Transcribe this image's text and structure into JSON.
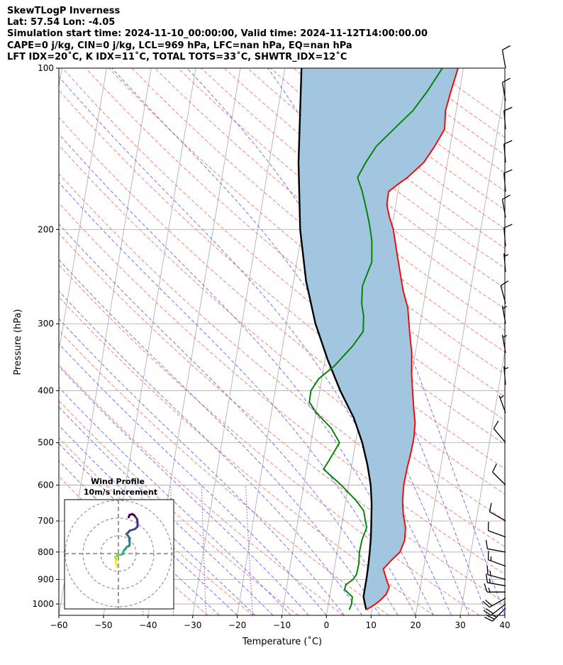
{
  "header": {
    "line1": "SkewTLogP Inverness",
    "line2": "Lat: 57.54   Lon: -4.05",
    "line3": "Simulation start time: 2024-11-10_00:00:00, Valid time: 2024-11-12T14:00:00.00",
    "line4": "CAPE=0 j/kg, CIN=0 j/kg, LCL=969 hPa, LFC=nan hPa, EQ=nan hPa",
    "line5": "LFT IDX=20$^\\circ$C, K IDX=11$^\\circ$C, TOTAL TOTS=33$^\\circ$C, SHWTR_IDX=12$^\\circ$C"
  },
  "header_display": {
    "line5": "LFT IDX=20˚C, K IDX=11˚C, TOTAL TOTS=33˚C, SHWTR_IDX=12˚C"
  },
  "colors": {
    "temperature": "#ff0000",
    "dewpoint": "#008000",
    "parcel": "#000000",
    "cape_fill": "#a2c5e0",
    "dry_adiabat": "#ff6666",
    "moist_adiabat": "#5a5aff",
    "mixing_ratio": "#9a40c0",
    "isotherm": "#b0b0b0",
    "grid": "#b0b0b0"
  },
  "chart_data": [
    {
      "type": "line",
      "title": "",
      "xlabel": "Temperature ($^\\circ$C)",
      "xlabel_display": "Temperature (˚C)",
      "ylabel": "Pressure (hPa)",
      "xlim": [
        -60,
        40
      ],
      "ylim": [
        1050,
        100
      ],
      "yscale": "log",
      "x_ticks": [
        -60,
        -50,
        -40,
        -30,
        -20,
        -10,
        0,
        10,
        20,
        30,
        40
      ],
      "x_tick_labels": [
        "−60",
        "−50",
        "−40",
        "−30",
        "−20",
        "−10",
        "0",
        "10",
        "20",
        "30",
        "40"
      ],
      "y_ticks": [
        100,
        200,
        300,
        400,
        500,
        600,
        700,
        800,
        900,
        1000
      ],
      "y_tick_labels": [
        "100",
        "200",
        "300",
        "400",
        "500",
        "600",
        "700",
        "800",
        "900",
        "1000"
      ],
      "grid": true,
      "skew": true,
      "series": [
        {
          "kind": "temperature",
          "points": [
            [
              1025,
              8.7
            ],
            [
              1010,
              9.9
            ],
            [
              990,
              11.2
            ],
            [
              960,
              12.6
            ],
            [
              930,
              13.0
            ],
            [
              900,
              12.1
            ],
            [
              860,
              11.0
            ],
            [
              830,
              12.4
            ],
            [
              800,
              14.1
            ],
            [
              760,
              14.7
            ],
            [
              720,
              14.4
            ],
            [
              680,
              13.4
            ],
            [
              640,
              12.7
            ],
            [
              600,
              12.4
            ],
            [
              560,
              12.5
            ],
            [
              520,
              12.8
            ],
            [
              490,
              12.9
            ],
            [
              460,
              12.6
            ],
            [
              430,
              11.7
            ],
            [
              400,
              10.8
            ],
            [
              370,
              9.9
            ],
            [
              340,
              9.2
            ],
            [
              310,
              7.9
            ],
            [
              280,
              6.6
            ],
            [
              260,
              4.9
            ],
            [
              240,
              3.5
            ],
            [
              220,
              2.0
            ],
            [
              200,
              0.4
            ],
            [
              190,
              -0.9
            ],
            [
              180,
              -2.0
            ],
            [
              170,
              -2.1
            ],
            [
              165,
              -0.4
            ],
            [
              160,
              1.6
            ],
            [
              150,
              4.7
            ],
            [
              140,
              6.5
            ],
            [
              130,
              8.1
            ],
            [
              120,
              7.6
            ],
            [
              110,
              8.1
            ],
            [
              100,
              8.8
            ]
          ]
        },
        {
          "kind": "dewpoint",
          "points": [
            [
              1025,
              4.9
            ],
            [
              1000,
              5.2
            ],
            [
              970,
              5.1
            ],
            [
              940,
              3.1
            ],
            [
              920,
              3.2
            ],
            [
              900,
              4.6
            ],
            [
              880,
              5.2
            ],
            [
              840,
              5.3
            ],
            [
              800,
              5.0
            ],
            [
              760,
              5.1
            ],
            [
              720,
              5.7
            ],
            [
              690,
              4.9
            ],
            [
              670,
              4.4
            ],
            [
              640,
              2.2
            ],
            [
              600,
              -1.6
            ],
            [
              560,
              -6.2
            ],
            [
              540,
              -5.3
            ],
            [
              500,
              -3.6
            ],
            [
              470,
              -6.0
            ],
            [
              440,
              -9.9
            ],
            [
              420,
              -11.9
            ],
            [
              400,
              -12.0
            ],
            [
              380,
              -10.7
            ],
            [
              360,
              -7.7
            ],
            [
              330,
              -4.3
            ],
            [
              310,
              -2.5
            ],
            [
              290,
              -3.0
            ],
            [
              275,
              -3.9
            ],
            [
              255,
              -4.4
            ],
            [
              230,
              -3.2
            ],
            [
              210,
              -4.0
            ],
            [
              195,
              -5.2
            ],
            [
              180,
              -6.8
            ],
            [
              170,
              -8.0
            ],
            [
              160,
              -9.6
            ],
            [
              150,
              -8.3
            ],
            [
              140,
              -6.6
            ],
            [
              130,
              -3.3
            ],
            [
              120,
              0.3
            ],
            [
              110,
              2.9
            ],
            [
              100,
              5.3
            ]
          ]
        },
        {
          "kind": "parcel",
          "points": [
            [
              1025,
              8.7
            ],
            [
              1000,
              8.2
            ],
            [
              969,
              7.6
            ],
            [
              950,
              7.6
            ],
            [
              900,
              7.6
            ],
            [
              850,
              7.5
            ],
            [
              800,
              7.3
            ],
            [
              750,
              7.0
            ],
            [
              700,
              6.5
            ],
            [
              650,
              5.9
            ],
            [
              600,
              5.0
            ],
            [
              550,
              3.5
            ],
            [
              500,
              1.5
            ],
            [
              450,
              -1.3
            ],
            [
              400,
              -5.4
            ],
            [
              350,
              -9.4
            ],
            [
              300,
              -13.5
            ],
            [
              250,
              -17.2
            ],
            [
              200,
              -20.5
            ],
            [
              150,
              -23.4
            ],
            [
              100,
              -26.3
            ]
          ]
        }
      ],
      "wind_barbs": [
        {
          "p": 1018,
          "spd": 27,
          "dir": 225
        },
        {
          "p": 1000,
          "spd": 22,
          "dir": 232
        },
        {
          "p": 975,
          "spd": 18,
          "dir": 240
        },
        {
          "p": 950,
          "spd": 15,
          "dir": 270
        },
        {
          "p": 925,
          "spd": 16,
          "dir": 280
        },
        {
          "p": 900,
          "spd": 15,
          "dir": 285
        },
        {
          "p": 850,
          "spd": 14,
          "dir": 290
        },
        {
          "p": 800,
          "spd": 12,
          "dir": 280
        },
        {
          "p": 750,
          "spd": 12,
          "dir": 290
        },
        {
          "p": 700,
          "spd": 8,
          "dir": 300
        },
        {
          "p": 600,
          "spd": 8,
          "dir": 315
        },
        {
          "p": 500,
          "spd": 8,
          "dir": 320
        },
        {
          "p": 440,
          "spd": 5,
          "dir": 340
        },
        {
          "p": 390,
          "spd": 7,
          "dir": 355
        },
        {
          "p": 340,
          "spd": 7,
          "dir": 350
        },
        {
          "p": 300,
          "spd": 7,
          "dir": 350
        },
        {
          "p": 275,
          "spd": 8,
          "dir": 345
        },
        {
          "p": 240,
          "spd": 7,
          "dir": 355
        },
        {
          "p": 215,
          "spd": 8,
          "dir": 355
        },
        {
          "p": 190,
          "spd": 12,
          "dir": 350
        },
        {
          "p": 170,
          "spd": 12,
          "dir": 355
        },
        {
          "p": 150,
          "spd": 10,
          "dir": 355
        },
        {
          "p": 130,
          "spd": 8,
          "dir": 355
        },
        {
          "p": 115,
          "spd": 9,
          "dir": 350
        },
        {
          "p": 100,
          "spd": 8,
          "dir": 350
        }
      ]
    },
    {
      "type": "scatter",
      "title": "Wind Profile\n10m/s increment",
      "title_lines": [
        "Wind Profile",
        "10m/s increment"
      ],
      "rings_ms": [
        10,
        20,
        30
      ],
      "hodograph_uv": [
        [
          -0.8,
          -7.5
        ],
        [
          -1.0,
          -6.8
        ],
        [
          -1.2,
          -5.6
        ],
        [
          -1.5,
          -4.5
        ],
        [
          -1.2,
          -3.2
        ],
        [
          -1.5,
          -2.4
        ],
        [
          -1.9,
          -1.8
        ],
        [
          -0.5,
          -1.1
        ],
        [
          0.8,
          -0.6
        ],
        [
          1.8,
          -0.6
        ],
        [
          2.2,
          -0.3
        ],
        [
          2.7,
          -0.1
        ],
        [
          2.7,
          0.8
        ],
        [
          3.0,
          1.5
        ],
        [
          3.4,
          2.2
        ],
        [
          4.1,
          2.7
        ],
        [
          4.6,
          3.7
        ],
        [
          6.2,
          4.4
        ],
        [
          6.4,
          6.2
        ],
        [
          6.0,
          7.6
        ],
        [
          6.5,
          8.5
        ],
        [
          6.0,
          9.1
        ],
        [
          5.4,
          10.1
        ],
        [
          4.5,
          11.0
        ],
        [
          5.6,
          12.0
        ],
        [
          6.4,
          12.9
        ],
        [
          9.5,
          13.9
        ],
        [
          10.8,
          15.3
        ],
        [
          10.8,
          17.5
        ],
        [
          10.5,
          19.5
        ],
        [
          9.0,
          21.5
        ],
        [
          7.8,
          22.3
        ],
        [
          6.3,
          21.8
        ],
        [
          5.8,
          20.5
        ]
      ]
    }
  ]
}
